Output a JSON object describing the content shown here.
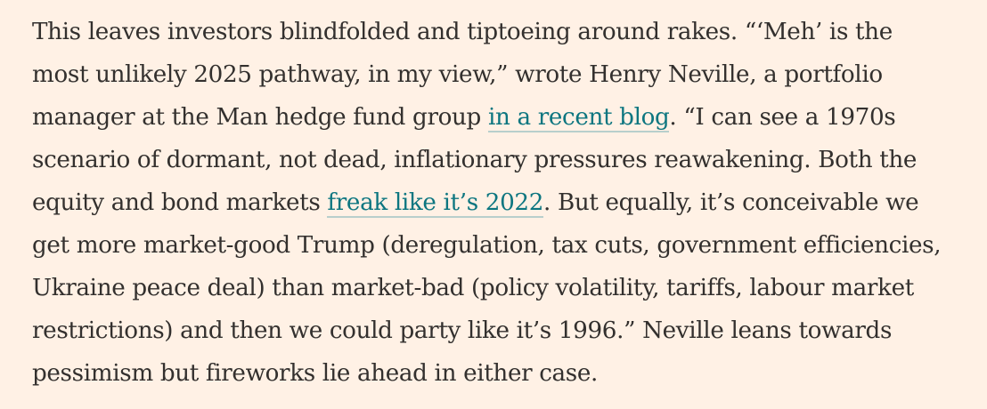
{
  "article": {
    "lines": [
      {
        "before": "This leaves investors blindfolded and tiptoeing around rakes. “‘Meh’ is the"
      },
      {
        "before": "most unlikely 2025 pathway, in my view,” wrote Henry Neville, a portfolio"
      },
      {
        "before": "manager at the Man hedge fund group ",
        "link": "in a recent blog",
        "after": ". “I can see a 1970s"
      },
      {
        "before": "scenario of dormant, not dead, inflationary pressures reawakening. Both the"
      },
      {
        "before": "equity and bond markets ",
        "link": "freak like it’s 2022",
        "after": ". But equally, it’s conceivable we"
      },
      {
        "before": "get more market-good Trump (deregulation, tax cuts, government efficiencies,"
      },
      {
        "before": "Ukraine peace deal) than market-bad (policy volatility, tariffs, labour market"
      },
      {
        "before": "restrictions) and then we could party like it’s 1996.” Neville leans towards"
      },
      {
        "before": "pessimism but fireworks lie ahead in either case."
      }
    ]
  },
  "colors": {
    "background": "#fff1e5",
    "text": "#33302e",
    "link": "#0d7680",
    "link_underline": "#b8cfcc"
  }
}
